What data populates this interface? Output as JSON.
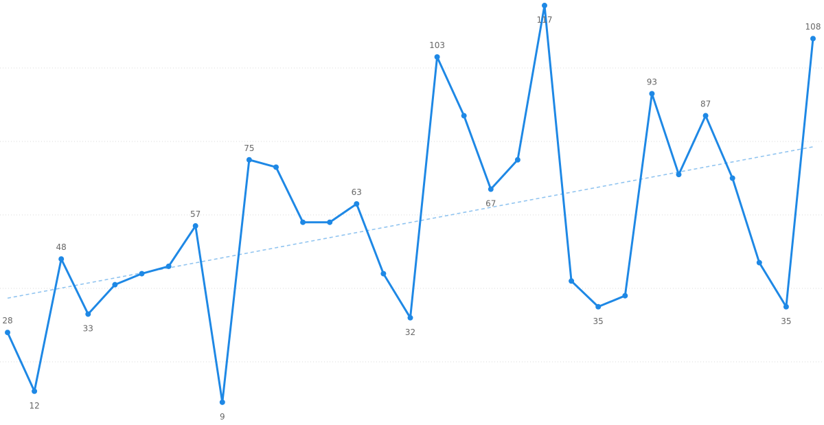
{
  "chart_data": {
    "type": "line",
    "title": "",
    "xlabel": "",
    "ylabel": "",
    "ylim": [
      0,
      118
    ],
    "grid": true,
    "gridlines_at": [
      20,
      40,
      60,
      80,
      100
    ],
    "trendline": true,
    "colors": {
      "line": "#1e88e5",
      "trend": "#90c4f0",
      "grid": "#d9d9d9",
      "label": "#666666"
    },
    "values": [
      28,
      12,
      48,
      33,
      41,
      44,
      46,
      57,
      9,
      75,
      73,
      58,
      58,
      63,
      44,
      32,
      103,
      87,
      67,
      75,
      117,
      42,
      35,
      38,
      93,
      71,
      87,
      70,
      47,
      35,
      108
    ],
    "data_labels": [
      {
        "index": 0,
        "text": "28",
        "pos": "above"
      },
      {
        "index": 1,
        "text": "12",
        "pos": "below"
      },
      {
        "index": 2,
        "text": "48",
        "pos": "above"
      },
      {
        "index": 3,
        "text": "33",
        "pos": "below"
      },
      {
        "index": 7,
        "text": "57",
        "pos": "above"
      },
      {
        "index": 8,
        "text": "9",
        "pos": "below"
      },
      {
        "index": 9,
        "text": "75",
        "pos": "above"
      },
      {
        "index": 13,
        "text": "63",
        "pos": "above"
      },
      {
        "index": 15,
        "text": "32",
        "pos": "below"
      },
      {
        "index": 16,
        "text": "103",
        "pos": "above"
      },
      {
        "index": 18,
        "text": "67",
        "pos": "below"
      },
      {
        "index": 20,
        "text": "117",
        "pos": "below"
      },
      {
        "index": 22,
        "text": "35",
        "pos": "below"
      },
      {
        "index": 24,
        "text": "93",
        "pos": "above"
      },
      {
        "index": 26,
        "text": "87",
        "pos": "above"
      },
      {
        "index": 29,
        "text": "35",
        "pos": "below"
      },
      {
        "index": 30,
        "text": "108",
        "pos": "above"
      }
    ]
  }
}
